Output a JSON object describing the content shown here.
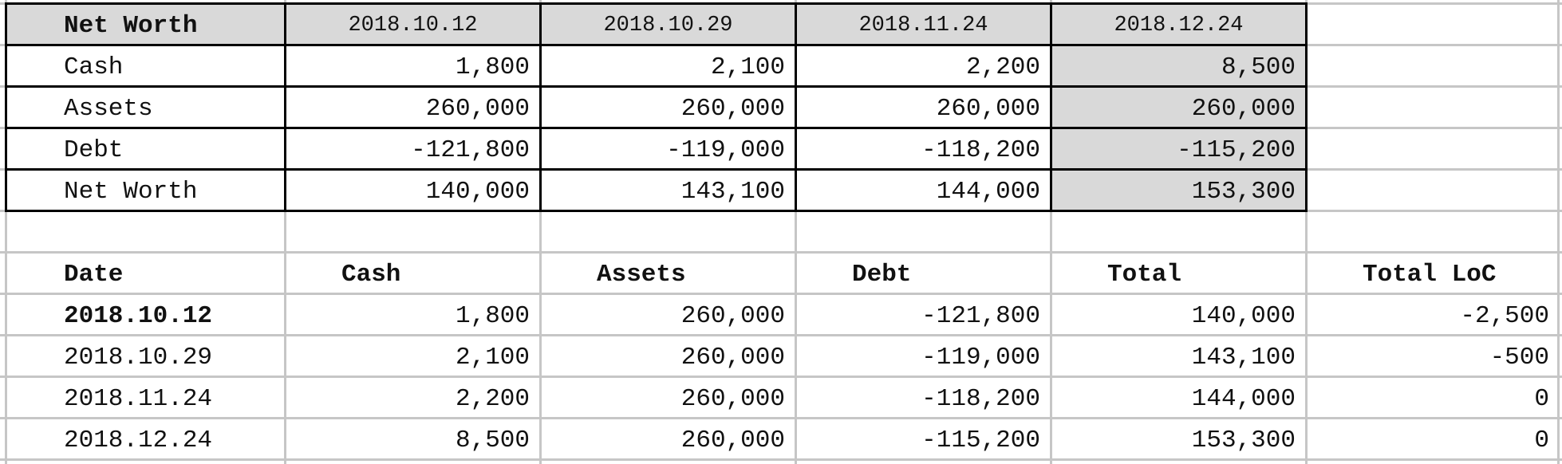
{
  "summary": {
    "header": {
      "label": "Net Worth",
      "dates": [
        "2018.10.12",
        "2018.10.29",
        "2018.11.24",
        "2018.12.24"
      ]
    },
    "rows": [
      {
        "label": "Cash",
        "values": [
          "1,800",
          "2,100",
          "2,200",
          "8,500"
        ]
      },
      {
        "label": "Assets",
        "values": [
          "260,000",
          "260,000",
          "260,000",
          "260,000"
        ]
      },
      {
        "label": "Debt",
        "values": [
          "-121,800",
          "-119,000",
          "-118,200",
          "-115,200"
        ]
      },
      {
        "label": "Net Worth",
        "values": [
          "140,000",
          "143,100",
          "144,000",
          "153,300"
        ]
      }
    ]
  },
  "history": {
    "columns": [
      "Date",
      "Cash",
      "Assets",
      "Debt",
      "Total",
      "Total LoC"
    ],
    "rows": [
      {
        "date": "2018.10.12",
        "cash": "1,800",
        "assets": "260,000",
        "debt": "-121,800",
        "total": "140,000",
        "loc": "-2,500"
      },
      {
        "date": "2018.10.29",
        "cash": "2,100",
        "assets": "260,000",
        "debt": "-119,000",
        "total": "143,100",
        "loc": "-500"
      },
      {
        "date": "2018.11.24",
        "cash": "2,200",
        "assets": "260,000",
        "debt": "-118,200",
        "total": "144,000",
        "loc": "0"
      },
      {
        "date": "2018.12.24",
        "cash": "8,500",
        "assets": "260,000",
        "debt": "-115,200",
        "total": "153,300",
        "loc": "0"
      }
    ]
  },
  "colors": {
    "highlight": "#d9d9d9",
    "grid": "#c6c6c6",
    "border": "#000000"
  }
}
